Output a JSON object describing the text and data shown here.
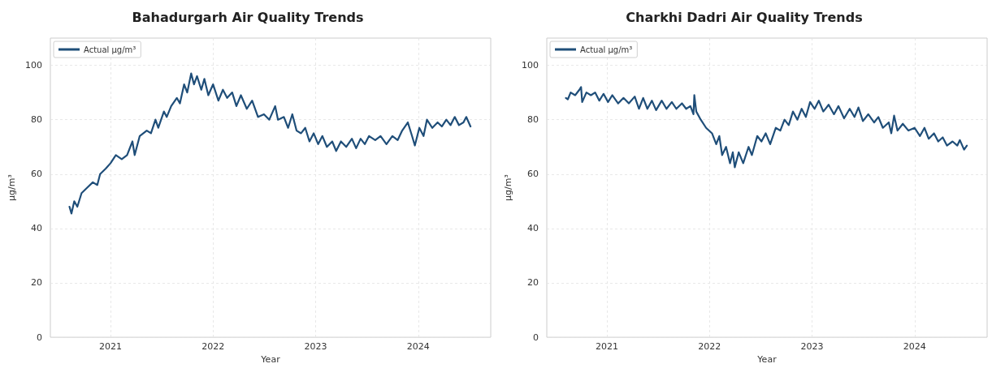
{
  "chart_data": [
    {
      "type": "line",
      "title": "Bahadurgarh Air Quality Trends",
      "xlabel": "Year",
      "ylabel": "µg/m³",
      "legend": "top left",
      "grid": true,
      "marker": "none",
      "line_style": "solid",
      "xlim": [
        "2020-06-01",
        "2024-09-15"
      ],
      "xticks": [
        {
          "value": "2021-01-01",
          "label": "2021"
        },
        {
          "value": "2022-01-01",
          "label": "2022"
        },
        {
          "value": "2023-01-01",
          "label": "2023"
        },
        {
          "value": "2024-01-01",
          "label": "2024"
        }
      ],
      "ylim": [
        0,
        110
      ],
      "yticks": [
        0,
        20,
        40,
        60,
        80,
        100
      ],
      "x": [
        "2020-08-08",
        "2020-08-15",
        "2020-08-25",
        "2020-09-05",
        "2020-09-20",
        "2020-10-10",
        "2020-10-30",
        "2020-11-15",
        "2020-11-25",
        "2020-12-15",
        "2021-01-01",
        "2021-01-20",
        "2021-02-10",
        "2021-03-01",
        "2021-03-20",
        "2021-03-28",
        "2021-04-15",
        "2021-05-10",
        "2021-05-25",
        "2021-06-10",
        "2021-06-20",
        "2021-07-10",
        "2021-07-20",
        "2021-08-05",
        "2021-08-25",
        "2021-09-05",
        "2021-09-20",
        "2021-10-01",
        "2021-10-15",
        "2021-10-25",
        "2021-11-05",
        "2021-11-20",
        "2021-12-01",
        "2021-12-15",
        "2022-01-01",
        "2022-01-20",
        "2022-02-05",
        "2022-02-20",
        "2022-03-10",
        "2022-03-25",
        "2022-04-10",
        "2022-05-01",
        "2022-05-20",
        "2022-06-10",
        "2022-07-01",
        "2022-07-20",
        "2022-08-10",
        "2022-08-20",
        "2022-09-10",
        "2022-09-25",
        "2022-10-10",
        "2022-10-25",
        "2022-11-10",
        "2022-11-25",
        "2022-12-10",
        "2022-12-25",
        "2023-01-10",
        "2023-01-25",
        "2023-02-10",
        "2023-03-01",
        "2023-03-15",
        "2023-04-01",
        "2023-04-20",
        "2023-05-10",
        "2023-05-25",
        "2023-06-10",
        "2023-06-25",
        "2023-07-10",
        "2023-08-01",
        "2023-08-20",
        "2023-09-10",
        "2023-10-01",
        "2023-10-20",
        "2023-11-05",
        "2023-11-25",
        "2023-12-10",
        "2023-12-20",
        "2024-01-05",
        "2024-01-20",
        "2024-02-01",
        "2024-02-20",
        "2024-03-10",
        "2024-03-25",
        "2024-04-10",
        "2024-04-25",
        "2024-05-10",
        "2024-05-25",
        "2024-06-10",
        "2024-06-20",
        "2024-07-05"
      ],
      "series": [
        {
          "name": "Actual µg/m³",
          "color": "#1f4e79",
          "values": [
            48,
            45.5,
            50,
            48,
            53,
            55,
            57,
            56,
            60,
            62,
            64,
            67,
            65.5,
            67,
            72,
            67,
            74,
            76,
            75,
            80,
            77,
            83,
            81,
            85,
            88,
            86,
            93,
            90,
            97,
            93,
            96,
            91,
            95,
            89,
            93,
            87,
            91,
            88,
            90,
            85,
            89,
            84,
            87,
            81,
            82,
            80,
            85,
            80,
            81,
            77,
            82,
            76,
            75,
            77,
            72,
            75,
            71,
            74,
            70,
            72,
            68.5,
            72,
            70,
            73,
            69.5,
            73,
            71,
            74,
            72.5,
            74,
            71,
            74,
            72.5,
            76,
            79,
            74,
            70.5,
            77,
            74,
            80,
            77,
            79,
            77.5,
            80,
            78,
            81,
            78,
            79,
            81,
            77.5
          ]
        }
      ]
    },
    {
      "type": "line",
      "title": "Charkhi Dadri Air Quality Trends",
      "xlabel": "Year",
      "ylabel": "µg/m³",
      "legend": "top left",
      "grid": true,
      "marker": "none",
      "line_style": "solid",
      "xlim": [
        "2020-06-01",
        "2024-09-15"
      ],
      "xticks": [
        {
          "value": "2021-01-01",
          "label": "2021"
        },
        {
          "value": "2022-01-01",
          "label": "2022"
        },
        {
          "value": "2023-01-01",
          "label": "2023"
        },
        {
          "value": "2024-01-01",
          "label": "2024"
        }
      ],
      "ylim": [
        0,
        110
      ],
      "yticks": [
        0,
        20,
        40,
        60,
        80,
        100
      ],
      "x": [
        "2020-08-08",
        "2020-08-15",
        "2020-08-25",
        "2020-09-10",
        "2020-09-25",
        "2020-10-01",
        "2020-10-05",
        "2020-10-20",
        "2020-11-05",
        "2020-11-20",
        "2020-12-05",
        "2020-12-20",
        "2021-01-05",
        "2021-01-20",
        "2021-02-10",
        "2021-03-01",
        "2021-03-20",
        "2021-04-10",
        "2021-04-25",
        "2021-05-10",
        "2021-05-25",
        "2021-06-10",
        "2021-06-25",
        "2021-07-15",
        "2021-08-01",
        "2021-08-20",
        "2021-09-05",
        "2021-09-25",
        "2021-10-10",
        "2021-10-25",
        "2021-11-05",
        "2021-11-08",
        "2021-11-15",
        "2021-12-01",
        "2021-12-20",
        "2022-01-10",
        "2022-01-25",
        "2022-02-05",
        "2022-02-15",
        "2022-03-01",
        "2022-03-15",
        "2022-03-25",
        "2022-04-01",
        "2022-04-15",
        "2022-05-01",
        "2022-05-20",
        "2022-06-01",
        "2022-06-20",
        "2022-07-05",
        "2022-07-20",
        "2022-08-05",
        "2022-08-25",
        "2022-09-10",
        "2022-09-25",
        "2022-10-10",
        "2022-10-25",
        "2022-11-10",
        "2022-11-25",
        "2022-12-10",
        "2022-12-25",
        "2023-01-10",
        "2023-01-25",
        "2023-02-10",
        "2023-03-01",
        "2023-03-20",
        "2023-04-05",
        "2023-04-25",
        "2023-05-15",
        "2023-06-01",
        "2023-06-15",
        "2023-07-01",
        "2023-07-20",
        "2023-08-10",
        "2023-08-25",
        "2023-09-10",
        "2023-10-01",
        "2023-10-10",
        "2023-10-20",
        "2023-11-01",
        "2023-11-20",
        "2023-12-10",
        "2024-01-01",
        "2024-01-20",
        "2024-02-05",
        "2024-02-20",
        "2024-03-10",
        "2024-03-25",
        "2024-04-10",
        "2024-04-25",
        "2024-05-15",
        "2024-06-01",
        "2024-06-10",
        "2024-06-25",
        "2024-07-05"
      ],
      "series": [
        {
          "name": "Actual µg/m³",
          "color": "#1f4e79",
          "values": [
            88,
            87.5,
            90,
            89,
            91,
            92,
            86.5,
            90,
            89,
            90,
            87,
            89.5,
            86.5,
            89,
            86,
            88,
            86,
            88.5,
            84,
            88,
            84,
            87,
            83.5,
            87,
            84,
            86.5,
            84,
            86,
            84,
            85,
            82,
            89,
            83,
            80,
            77,
            75,
            71,
            74,
            67,
            70,
            64,
            68,
            62.5,
            68,
            64,
            70,
            67,
            74,
            72,
            75,
            71,
            77,
            76,
            80,
            78,
            83,
            80,
            84,
            81,
            86.5,
            84,
            87,
            83,
            85.5,
            82,
            85,
            80.5,
            84,
            81,
            84.5,
            79.5,
            82,
            79,
            81,
            77,
            79,
            75,
            81.5,
            76,
            78.5,
            76,
            77,
            74,
            77,
            73,
            75,
            72,
            73.5,
            70.5,
            72,
            70.5,
            72.5,
            69,
            70.5
          ]
        }
      ]
    }
  ]
}
